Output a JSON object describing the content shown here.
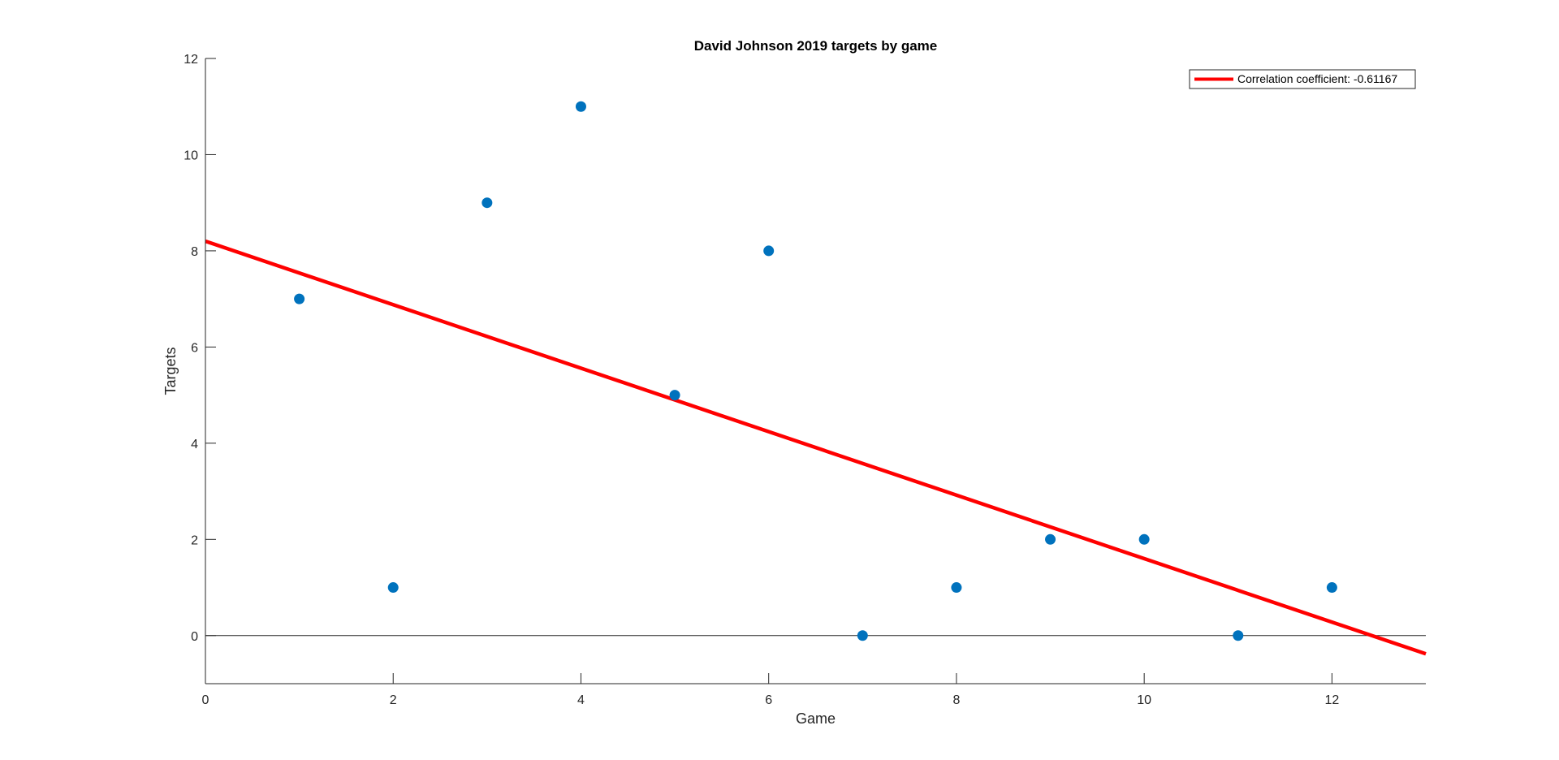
{
  "chart_data": {
    "type": "scatter",
    "title": "David Johnson 2019 targets by game",
    "xlabel": "Game",
    "ylabel": "Targets",
    "xlim": [
      0,
      13
    ],
    "ylim": [
      -1,
      12
    ],
    "xticks": [
      0,
      2,
      4,
      6,
      8,
      10,
      12
    ],
    "yticks": [
      0,
      2,
      4,
      6,
      8,
      10,
      12
    ],
    "grid": false,
    "legend_position": "top-right",
    "zero_line": true,
    "series": [
      {
        "type": "scatter",
        "color": "#0072BD",
        "x": [
          1,
          2,
          3,
          4,
          5,
          6,
          7,
          8,
          9,
          10,
          11,
          12
        ],
        "y": [
          7,
          1,
          9,
          11,
          5,
          8,
          0,
          1,
          2,
          2,
          0,
          1
        ]
      },
      {
        "type": "line",
        "name": "Correlation coefficient: -0.61167",
        "color": "#FF0000",
        "x": [
          0,
          13
        ],
        "y": [
          8.2,
          -0.38
        ]
      }
    ]
  }
}
